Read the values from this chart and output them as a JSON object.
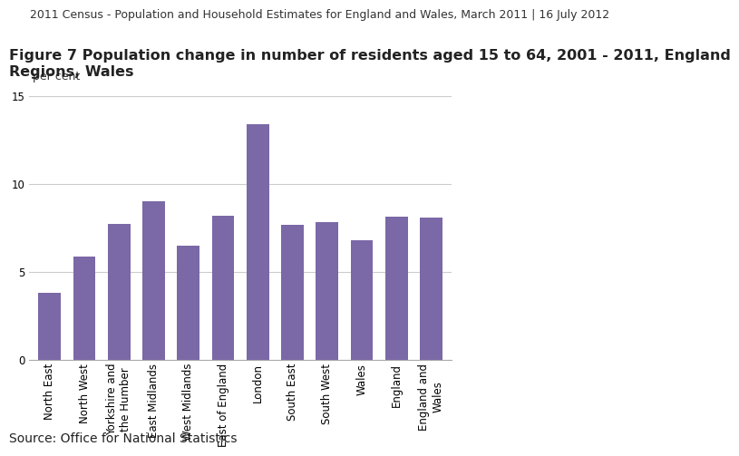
{
  "header": "2011 Census - Population and Household Estimates for England and Wales, March 2011 | 16 July 2012",
  "figure_title_line1": "Figure 7 Population change in number of residents aged 15 to 64, 2001 - 2011, England",
  "figure_title_line2": "Regions, Wales",
  "ylabel": "per cent",
  "source": "Source: Office for National Statistics",
  "categories": [
    "North East",
    "North West",
    "Yorkshire and\nthe Humber",
    "East Midlands",
    "West Midlands",
    "East of England",
    "London",
    "South East",
    "South West",
    "Wales",
    "England",
    "England and\nWales"
  ],
  "values": [
    3.8,
    5.85,
    7.7,
    9.0,
    6.5,
    8.2,
    13.4,
    7.65,
    7.8,
    6.8,
    8.15,
    8.1
  ],
  "bar_color": "#7B68A6",
  "ylim": [
    0,
    15
  ],
  "yticks": [
    0,
    5,
    10,
    15
  ],
  "background_color": "#ffffff",
  "header_fontsize": 9,
  "title_fontsize": 11.5,
  "source_fontsize": 10,
  "ylabel_fontsize": 9,
  "tick_fontsize": 8.5
}
